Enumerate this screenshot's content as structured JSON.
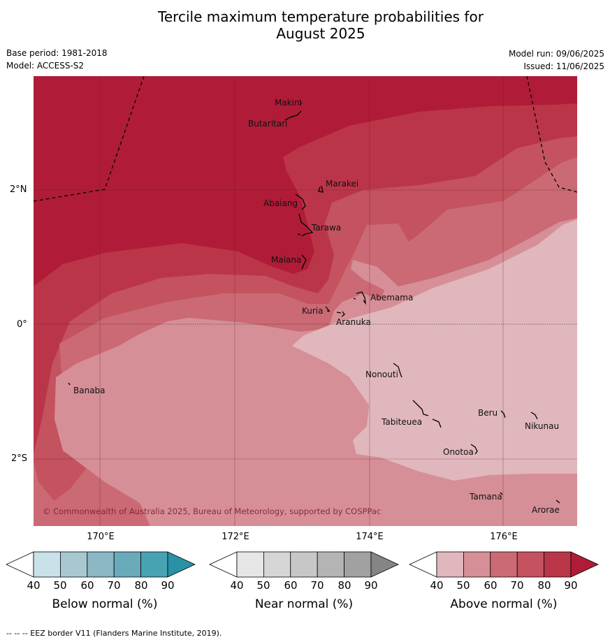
{
  "title": {
    "line1": "Tercile maximum temperature probabilities for",
    "line2": "August 2025"
  },
  "meta": {
    "base_period": "Base period: 1981-2018",
    "model": "Model: ACCESS-S2",
    "model_run": "Model run: 09/06/2025",
    "issued": "Issued: 11/06/2025"
  },
  "map": {
    "lat_labels": [
      "2°N",
      "0°",
      "2°S"
    ],
    "lon_labels": [
      "170°E",
      "172°E",
      "174°E",
      "176°E"
    ],
    "places": [
      "Makin",
      "Butaritari",
      "Marakei",
      "Abaiang",
      "Tarawa",
      "Maiana",
      "Abemama",
      "Kuria",
      "Aranuka",
      "Banaba",
      "Nonouti",
      "Beru",
      "Tabiteuea",
      "Nikunau",
      "Onotoa",
      "Tamana",
      "Arorae"
    ],
    "copyright": "© Commonwealth of Australia 2025, Bureau of Meteorology, supported by COSPPac",
    "probability_bands_colors": {
      "above_90": "#b01c37",
      "above_80": "#bb3548",
      "above_70": "#c4525f",
      "above_60": "#cb6a74",
      "above_50": "#d68f97",
      "above_40": "#e0b7bd"
    }
  },
  "colorbars": [
    {
      "label": "Below normal (%)",
      "ticks": [
        "40",
        "50",
        "60",
        "70",
        "80",
        "90"
      ],
      "colors": [
        "#ffffff",
        "#c9e1e8",
        "#a7c8d0",
        "#8ab8c4",
        "#6aabbb",
        "#47a3b4",
        "#2a91a6"
      ]
    },
    {
      "label": "Near normal (%)",
      "ticks": [
        "40",
        "50",
        "60",
        "70",
        "80",
        "90"
      ],
      "colors": [
        "#ffffff",
        "#e6e6e6",
        "#d6d6d6",
        "#c7c7c7",
        "#b4b4b4",
        "#a1a1a1",
        "#858585"
      ]
    },
    {
      "label": "Above normal (%)",
      "ticks": [
        "40",
        "50",
        "60",
        "70",
        "80",
        "90"
      ],
      "colors": [
        "#ffffff",
        "#e0b7bd",
        "#d68f97",
        "#cb6a74",
        "#c4525f",
        "#bb3548",
        "#b01c37"
      ]
    }
  ],
  "footnote": "--  --  -- EEZ border V11 (Flanders Marine Institute, 2019)."
}
